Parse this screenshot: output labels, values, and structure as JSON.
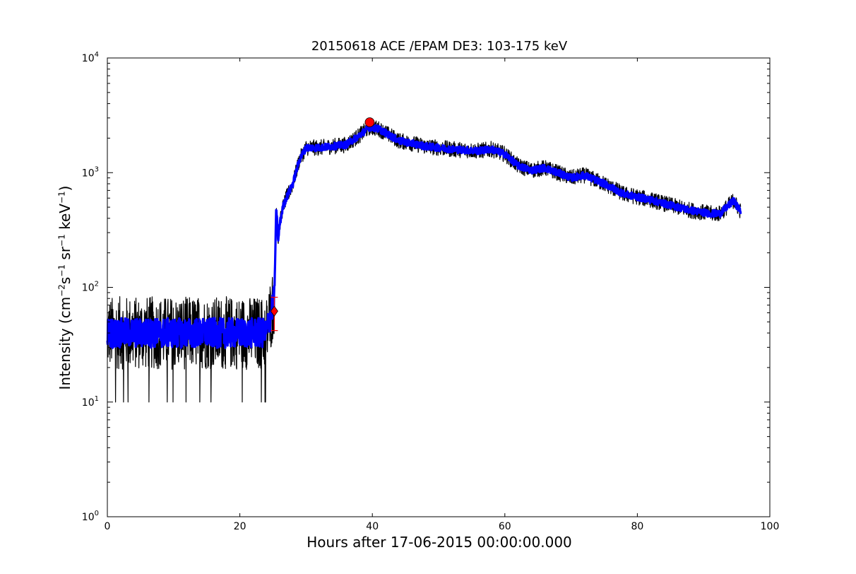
{
  "chart_data": {
    "type": "line",
    "title": "20150618 ACE /EPAM DE3: 103-175 keV",
    "xlabel": "Hours after 17-06-2015 00:00:00.000",
    "ylabel": {
      "prefix": "Intensity (cm",
      "exp1": "−2",
      "mid1": "s",
      "exp2": "−1",
      "mid2": "sr",
      "exp3": "−1",
      "mid3": "keV",
      "exp4": "−1",
      "suffix": ")"
    },
    "xlim": [
      0,
      100
    ],
    "ylim": [
      1,
      10000
    ],
    "yscale": "log",
    "grid": false,
    "x_ticks": [
      "0",
      "20",
      "40",
      "60",
      "80",
      "100"
    ],
    "y_ticks": [
      {
        "base": "10",
        "exp": "0"
      },
      {
        "base": "10",
        "exp": "1"
      },
      {
        "base": "10",
        "exp": "2"
      },
      {
        "base": "10",
        "exp": "3"
      },
      {
        "base": "10",
        "exp": "4"
      }
    ],
    "series": [
      {
        "color": "#000000",
        "style": "raw",
        "x": [
          0.0,
          1.0,
          2.0,
          3.0,
          4.0,
          5.0,
          6.0,
          7.0,
          8.0,
          9.0,
          10.0,
          11.0,
          12.0,
          13.0,
          14.0,
          15.0,
          16.0,
          17.0,
          18.0,
          19.0,
          20.0,
          21.0,
          22.0,
          23.0,
          24.0,
          25.2,
          25.5,
          25.8,
          26.0,
          26.5,
          27.0,
          28.0,
          29.0,
          30.0,
          32.0,
          34.0,
          36.0,
          38.0,
          39.6,
          41.0,
          44.0,
          48.0,
          52.0,
          56.0,
          58.0,
          60.0,
          62.0,
          64.0,
          66.0,
          68.0,
          70.0,
          72.0,
          75.0,
          78.0,
          82.0,
          85.0,
          88.0,
          91.0,
          92.5,
          93.5,
          94.5,
          95.6
        ],
        "y": [
          40,
          40,
          40,
          40,
          40,
          40,
          40,
          40,
          40,
          40,
          40,
          40,
          40,
          40,
          40,
          40,
          40,
          40,
          40,
          40,
          40,
          40,
          40,
          40,
          40,
          80,
          500,
          250,
          350,
          500,
          600,
          800,
          1300,
          1650,
          1650,
          1700,
          1750,
          2100,
          2500,
          2400,
          1900,
          1700,
          1600,
          1550,
          1600,
          1450,
          1150,
          1050,
          1100,
          1000,
          900,
          950,
          800,
          650,
          580,
          520,
          470,
          440,
          440,
          500,
          570,
          460
        ]
      },
      {
        "color": "#0000ff",
        "style": "smoothed",
        "x": [
          0.0,
          1.0,
          2.0,
          3.0,
          4.0,
          5.0,
          6.0,
          7.0,
          8.0,
          9.0,
          10.0,
          11.0,
          12.0,
          13.0,
          14.0,
          15.0,
          16.0,
          17.0,
          18.0,
          19.0,
          20.0,
          21.0,
          22.0,
          23.0,
          24.0,
          25.2,
          25.5,
          25.8,
          26.0,
          26.5,
          27.0,
          28.0,
          29.0,
          30.0,
          32.0,
          34.0,
          36.0,
          38.0,
          39.6,
          41.0,
          44.0,
          48.0,
          52.0,
          56.0,
          58.0,
          60.0,
          62.0,
          64.0,
          66.0,
          68.0,
          70.0,
          72.0,
          75.0,
          78.0,
          82.0,
          85.0,
          88.0,
          91.0,
          92.5,
          93.5,
          94.5,
          95.6
        ],
        "y": [
          40,
          40,
          40,
          40,
          40,
          40,
          40,
          40,
          40,
          40,
          40,
          40,
          40,
          40,
          40,
          40,
          40,
          40,
          40,
          40,
          40,
          40,
          40,
          40,
          40,
          80,
          500,
          250,
          350,
          500,
          600,
          800,
          1300,
          1650,
          1650,
          1700,
          1750,
          2100,
          2500,
          2400,
          1900,
          1700,
          1600,
          1550,
          1600,
          1450,
          1150,
          1050,
          1100,
          1000,
          900,
          950,
          800,
          650,
          580,
          520,
          470,
          440,
          440,
          500,
          570,
          460
        ]
      }
    ],
    "markers": [
      {
        "shape": "diamond",
        "color": "#ff0000",
        "x": 25.2,
        "y": 62,
        "error_low": 42,
        "error_high": 82
      },
      {
        "shape": "circle",
        "color": "#ff0000",
        "x": 39.6,
        "y": 2750
      }
    ]
  }
}
